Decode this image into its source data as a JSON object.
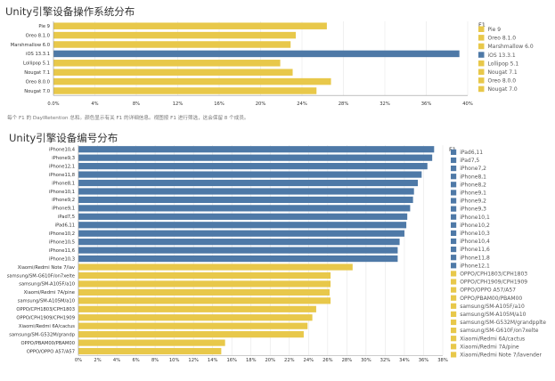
{
  "colors": {
    "android": "#e8c84a",
    "ios": "#4e79a7",
    "grid": "#e6e6e6",
    "axis": "#999999"
  },
  "note": "每个 F1 的 DayIRetention 总和。颜色显示有关 F1 的详细信息。视图按 F1 进行筛选，这会保留 8 个成员。",
  "chart_data": [
    {
      "type": "bar",
      "orientation": "horizontal",
      "title": "Unity引擎设备操作系统分布",
      "xlabel": "",
      "ylabel": "",
      "legend_title": "F1",
      "legend_position": "right",
      "grid": true,
      "xlim": [
        0,
        40
      ],
      "xticks": [
        "0.0%",
        "4%",
        "8%",
        "12%",
        "16%",
        "20%",
        "24%",
        "28%",
        "32%",
        "36%",
        "40%"
      ],
      "categories": [
        "Pie 9",
        "Oreo 8.1.0",
        "Marshmallow 6.0",
        "iOS 13.3.1",
        "Lollipop 5.1",
        "Nougat 7.1",
        "Oreo 8.0.0",
        "Nougat 7.0"
      ],
      "values": [
        26.4,
        23.4,
        22.9,
        39.2,
        21.9,
        23.1,
        26.8,
        25.4
      ],
      "groups": [
        "android",
        "android",
        "android",
        "ios",
        "android",
        "android",
        "android",
        "android"
      ],
      "legend": [
        {
          "label": "Pie 9",
          "group": "android"
        },
        {
          "label": "Oreo 8.1.0",
          "group": "android"
        },
        {
          "label": "Marshmallow 6.0",
          "group": "android"
        },
        {
          "label": "iOS 13.3.1",
          "group": "ios"
        },
        {
          "label": "Lollipop 5.1",
          "group": "android"
        },
        {
          "label": "Nougat 7.1",
          "group": "android"
        },
        {
          "label": "Oreo 8.0.0",
          "group": "android"
        },
        {
          "label": "Nougat 7.0",
          "group": "android"
        }
      ]
    },
    {
      "type": "bar",
      "orientation": "horizontal",
      "title": "Unity引擎设备编号分布",
      "xlabel": "",
      "ylabel": "",
      "legend_title": "F1",
      "legend_position": "right",
      "grid": true,
      "xlim": [
        0,
        38
      ],
      "xticks": [
        "0%",
        "2%",
        "4%",
        "6%",
        "8%",
        "10%",
        "12%",
        "14%",
        "16%",
        "18%",
        "20%",
        "22%",
        "24%",
        "26%",
        "28%",
        "30%",
        "32%",
        "34%",
        "36%",
        "38%"
      ],
      "categories": [
        "iPhone10,4",
        "iPhone9,3",
        "iPhone12,1",
        "iPhone11,8",
        "iPhone8,1",
        "iPhone10,1",
        "iPhone9,2",
        "iPhone9,1",
        "iPad7,5",
        "iPad6,11",
        "iPhone10,2",
        "iPhone10,5",
        "iPhone11,6",
        "iPhone10,3",
        "Xiaomi/Redmi Note 7/lav",
        "samsung/SM-G610F/on7xelte",
        "samsung/SM-A105F/a10",
        "Xiaomi/Redmi 7A/pine",
        "samsung/SM-A105M/a10",
        "OPPO/CPH1803/CPH1803",
        "OPPO/CPH1909/CPH1909",
        "Xiaomi/Redmi 6A/cactus",
        "samsung/SM-G532M/grandp",
        "OPPO/PBAM00/PBAM00",
        "OPPO/OPPO A57/A57"
      ],
      "values": [
        37.1,
        36.9,
        36.4,
        35.8,
        35.4,
        35.0,
        34.9,
        34.6,
        34.3,
        34.2,
        34.0,
        33.5,
        33.3,
        33.3,
        28.6,
        26.3,
        26.3,
        26.2,
        26.3,
        24.8,
        24.4,
        23.9,
        23.5,
        15.3,
        14.9
      ],
      "groups": [
        "ios",
        "ios",
        "ios",
        "ios",
        "ios",
        "ios",
        "ios",
        "ios",
        "ios",
        "ios",
        "ios",
        "ios",
        "ios",
        "ios",
        "android",
        "android",
        "android",
        "android",
        "android",
        "android",
        "android",
        "android",
        "android",
        "android",
        "android"
      ],
      "legend": [
        {
          "label": "iPad6,11",
          "group": "ios"
        },
        {
          "label": "iPad7,5",
          "group": "ios"
        },
        {
          "label": "iPhone7,2",
          "group": "ios"
        },
        {
          "label": "iPhone8,1",
          "group": "ios"
        },
        {
          "label": "iPhone8,2",
          "group": "ios"
        },
        {
          "label": "iPhone9,1",
          "group": "ios"
        },
        {
          "label": "iPhone9,2",
          "group": "ios"
        },
        {
          "label": "iPhone9,3",
          "group": "ios"
        },
        {
          "label": "iPhone10,1",
          "group": "ios"
        },
        {
          "label": "iPhone10,2",
          "group": "ios"
        },
        {
          "label": "iPhone10,3",
          "group": "ios"
        },
        {
          "label": "iPhone10,4",
          "group": "ios"
        },
        {
          "label": "iPhone11,6",
          "group": "ios"
        },
        {
          "label": "iPhone11,8",
          "group": "ios"
        },
        {
          "label": "iPhone12,1",
          "group": "ios"
        },
        {
          "label": "OPPO/CPH1803/CPH1803",
          "group": "android"
        },
        {
          "label": "OPPO/CPH1909/CPH1909",
          "group": "android"
        },
        {
          "label": "OPPO/OPPO A57/A57",
          "group": "android"
        },
        {
          "label": "OPPO/PBAM00/PBAM00",
          "group": "android"
        },
        {
          "label": "samsung/SM-A105F/a10",
          "group": "android"
        },
        {
          "label": "samsung/SM-A105M/a10",
          "group": "android"
        },
        {
          "label": "samsung/SM-G532M/grandpplte",
          "group": "android"
        },
        {
          "label": "samsung/SM-G610F/on7xelte",
          "group": "android"
        },
        {
          "label": "Xiaomi/Redmi 6A/cactus",
          "group": "android"
        },
        {
          "label": "Xiaomi/Redmi 7A/pine",
          "group": "android"
        },
        {
          "label": "Xiaomi/Redmi Note 7/lavender",
          "group": "android"
        }
      ]
    }
  ]
}
